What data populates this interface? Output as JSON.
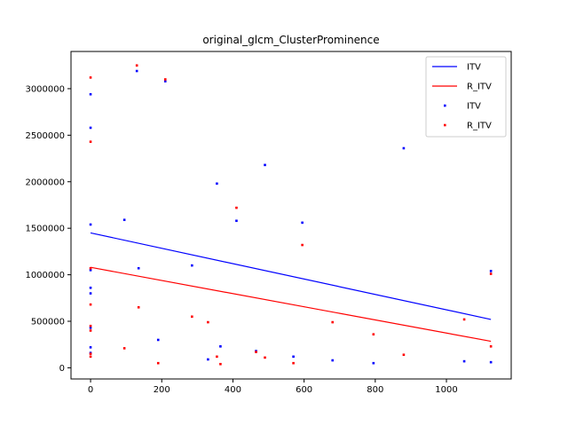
{
  "chart_data": {
    "type": "scatter",
    "title": "original_glcm_ClusterProminence",
    "xlim": [
      -55,
      1182
    ],
    "ylim": [
      -120000,
      3400000
    ],
    "x_ticks": [
      0,
      200,
      400,
      600,
      800,
      1000
    ],
    "y_ticks": [
      0,
      500000,
      1000000,
      1500000,
      2000000,
      2500000,
      3000000
    ],
    "legend_position": "top-right",
    "grid": false,
    "series": [
      {
        "name": "ITV",
        "kind": "line",
        "color": "#0000ff",
        "x": [
          0,
          1125
        ],
        "y": [
          1450000,
          520000
        ]
      },
      {
        "name": "R_ITV",
        "kind": "line",
        "color": "#ff0000",
        "x": [
          0,
          1125
        ],
        "y": [
          1080000,
          285000
        ]
      },
      {
        "name": "ITV",
        "kind": "scatter",
        "color": "#0000ff",
        "points": [
          [
            0,
            2940000
          ],
          [
            0,
            2580000
          ],
          [
            0,
            1540000
          ],
          [
            0,
            1050000
          ],
          [
            0,
            860000
          ],
          [
            0,
            800000
          ],
          [
            0,
            430000
          ],
          [
            0,
            220000
          ],
          [
            0,
            160000
          ],
          [
            95,
            1590000
          ],
          [
            130,
            3190000
          ],
          [
            135,
            1070000
          ],
          [
            190,
            300000
          ],
          [
            210,
            3080000
          ],
          [
            285,
            1100000
          ],
          [
            330,
            90000
          ],
          [
            355,
            1980000
          ],
          [
            365,
            230000
          ],
          [
            410,
            1580000
          ],
          [
            465,
            180000
          ],
          [
            490,
            2180000
          ],
          [
            570,
            120000
          ],
          [
            595,
            1560000
          ],
          [
            680,
            80000
          ],
          [
            795,
            50000
          ],
          [
            880,
            2360000
          ],
          [
            1050,
            70000
          ],
          [
            1125,
            1040000
          ],
          [
            1125,
            60000
          ]
        ]
      },
      {
        "name": "R_ITV",
        "kind": "scatter",
        "color": "#ff0000",
        "points": [
          [
            0,
            3120000
          ],
          [
            0,
            2430000
          ],
          [
            0,
            1070000
          ],
          [
            0,
            680000
          ],
          [
            0,
            450000
          ],
          [
            0,
            400000
          ],
          [
            0,
            150000
          ],
          [
            0,
            120000
          ],
          [
            95,
            210000
          ],
          [
            130,
            3250000
          ],
          [
            135,
            650000
          ],
          [
            190,
            50000
          ],
          [
            210,
            3100000
          ],
          [
            285,
            550000
          ],
          [
            330,
            490000
          ],
          [
            355,
            120000
          ],
          [
            365,
            40000
          ],
          [
            410,
            1720000
          ],
          [
            465,
            170000
          ],
          [
            490,
            110000
          ],
          [
            570,
            50000
          ],
          [
            595,
            1320000
          ],
          [
            680,
            490000
          ],
          [
            795,
            360000
          ],
          [
            880,
            140000
          ],
          [
            1050,
            520000
          ],
          [
            1125,
            1010000
          ],
          [
            1125,
            230000
          ]
        ]
      }
    ]
  }
}
